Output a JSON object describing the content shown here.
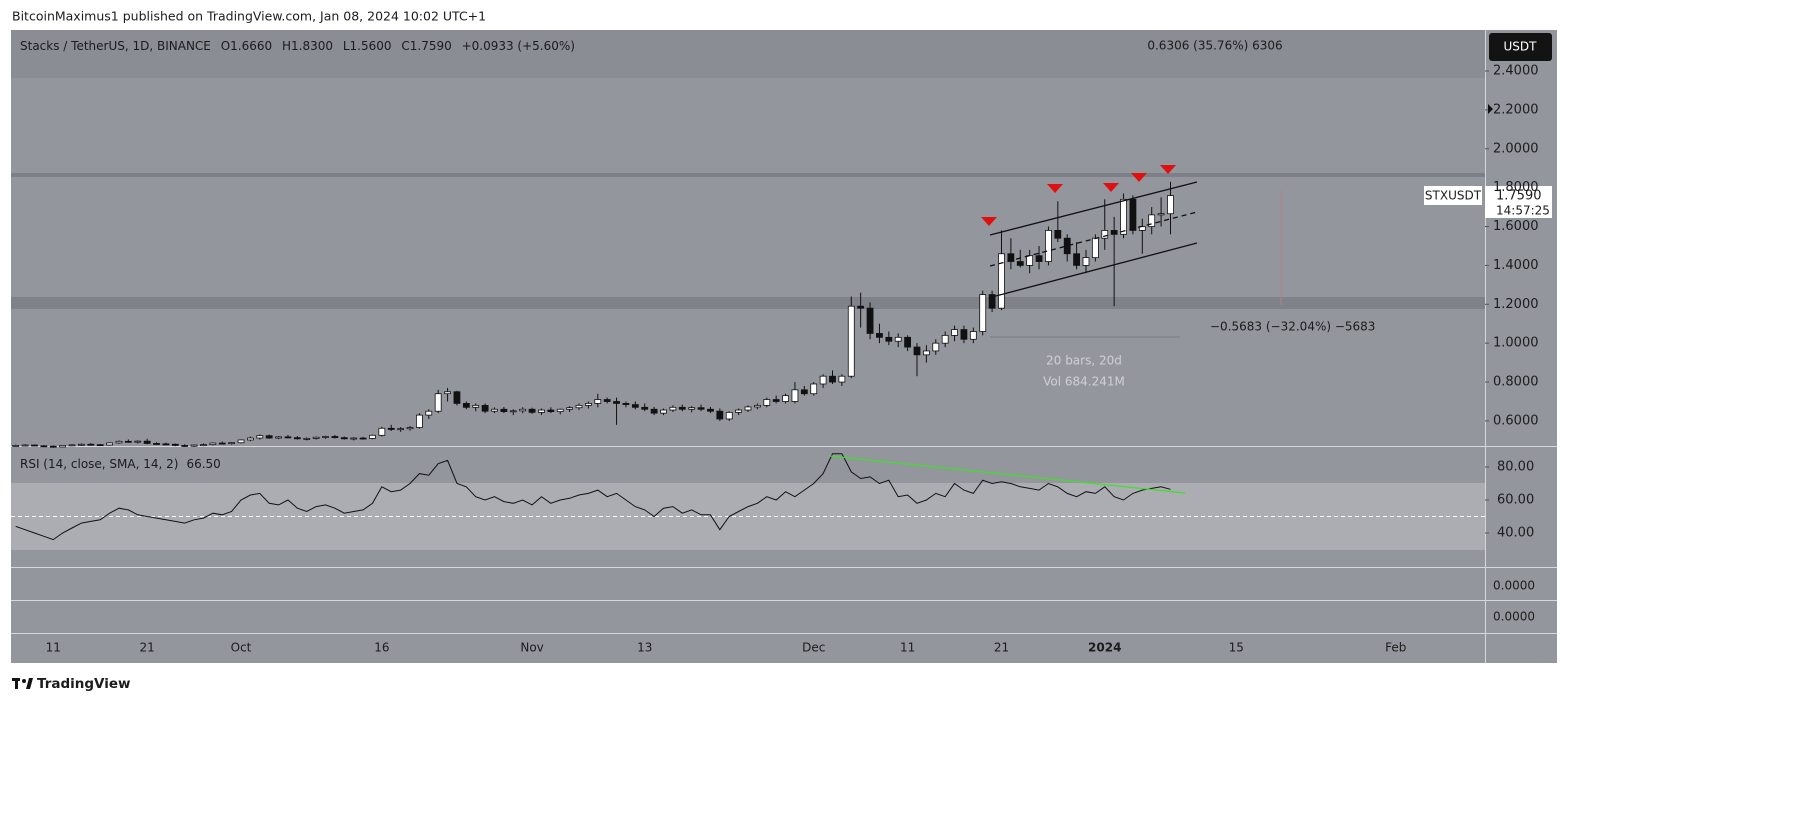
{
  "page": {
    "published": "BitcoinMaximus1 published on TradingView.com, Jan 08, 2024 10:02 UTC+1",
    "footer": "TradingView"
  },
  "chart_data": {
    "type": "candlestick",
    "header": {
      "symbol": "Stacks / TetherUS, 1D, BINANCE",
      "o": "O",
      "open": "1.6660",
      "h": "H",
      "high": "1.8300",
      "l": "L",
      "low": "1.5600",
      "c": "C",
      "close": "1.7590",
      "change": "+0.0933 (+5.60%)"
    },
    "currency": "USDT",
    "symbol_tag": "STXUSDT",
    "last_price": "1.7590",
    "countdown": "14:57:25",
    "annotations": {
      "range_up": "0.6306 (35.76%) 6306",
      "range_down": "−0.5683 (−32.04%) −5683",
      "bars": "20 bars, 20d",
      "volume": "Vol 684.241M"
    },
    "ylim": [
      0.471,
      2.611
    ],
    "yticks": [
      {
        "value": 0.6,
        "label": "0.6000"
      },
      {
        "value": 0.8,
        "label": "0.8000"
      },
      {
        "value": 1.0,
        "label": "1.0000"
      },
      {
        "value": 1.2,
        "label": "1.2000"
      },
      {
        "value": 1.4,
        "label": "1.4000"
      },
      {
        "value": 1.6,
        "label": "1.6000"
      },
      {
        "value": 1.8,
        "label": "1.8000"
      },
      {
        "value": 2.0,
        "label": "2.0000"
      },
      {
        "value": 2.2,
        "label": "2.2000"
      },
      {
        "value": 2.4,
        "label": "2.4000"
      }
    ],
    "up_color": "#ffffff",
    "down_color": "#111111",
    "categories": [
      null,
      null,
      null,
      null,
      "11",
      null,
      null,
      null,
      null,
      null,
      null,
      null,
      null,
      null,
      "21",
      null,
      null,
      null,
      null,
      null,
      null,
      null,
      null,
      null,
      "Oct",
      null,
      null,
      null,
      null,
      null,
      null,
      null,
      null,
      null,
      null,
      null,
      null,
      null,
      null,
      "16",
      null,
      null,
      null,
      null,
      null,
      null,
      null,
      null,
      null,
      null,
      null,
      null,
      null,
      null,
      null,
      "Nov",
      null,
      null,
      null,
      null,
      null,
      null,
      null,
      null,
      null,
      null,
      null,
      "13",
      null,
      null,
      null,
      null,
      null,
      null,
      null,
      null,
      null,
      null,
      null,
      null,
      null,
      null,
      null,
      null,
      null,
      "Dec",
      null,
      null,
      null,
      null,
      null,
      null,
      null,
      null,
      null,
      "11",
      null,
      null,
      null,
      null,
      null,
      null,
      null,
      null,
      null,
      "21",
      null,
      null,
      null,
      null,
      null,
      null,
      null,
      null,
      null,
      null,
      "2024",
      null,
      null,
      null,
      null,
      null,
      null,
      null,
      null,
      null,
      null,
      null,
      null,
      null,
      "15",
      null,
      null,
      null,
      null,
      null,
      null,
      null,
      null,
      null,
      null,
      null,
      null,
      null,
      null,
      null,
      null,
      "Feb",
      null,
      null,
      null,
      null,
      null,
      null,
      null,
      null,
      null
    ],
    "ohlc": [
      [
        0.472,
        0.478,
        0.468,
        0.474
      ],
      [
        0.474,
        0.48,
        0.47,
        0.476
      ],
      [
        0.476,
        0.479,
        0.47,
        0.472
      ],
      [
        0.472,
        0.476,
        0.466,
        0.47
      ],
      [
        0.47,
        0.474,
        0.462,
        0.466
      ],
      [
        0.466,
        0.476,
        0.464,
        0.474
      ],
      [
        0.474,
        0.48,
        0.47,
        0.477
      ],
      [
        0.477,
        0.484,
        0.472,
        0.48
      ],
      [
        0.48,
        0.486,
        0.474,
        0.478
      ],
      [
        0.478,
        0.482,
        0.472,
        0.476
      ],
      [
        0.476,
        0.49,
        0.474,
        0.487
      ],
      [
        0.487,
        0.5,
        0.482,
        0.495
      ],
      [
        0.495,
        0.505,
        0.488,
        0.492
      ],
      [
        0.492,
        0.5,
        0.484,
        0.496
      ],
      [
        0.496,
        0.508,
        0.48,
        0.484
      ],
      [
        0.484,
        0.49,
        0.476,
        0.482
      ],
      [
        0.482,
        0.488,
        0.476,
        0.48
      ],
      [
        0.48,
        0.484,
        0.47,
        0.474
      ],
      [
        0.474,
        0.48,
        0.466,
        0.47
      ],
      [
        0.47,
        0.478,
        0.466,
        0.476
      ],
      [
        0.476,
        0.484,
        0.47,
        0.478
      ],
      [
        0.478,
        0.49,
        0.474,
        0.486
      ],
      [
        0.486,
        0.494,
        0.48,
        0.484
      ],
      [
        0.484,
        0.49,
        0.478,
        0.488
      ],
      [
        0.488,
        0.505,
        0.484,
        0.502
      ],
      [
        0.502,
        0.52,
        0.496,
        0.512
      ],
      [
        0.512,
        0.53,
        0.504,
        0.524
      ],
      [
        0.524,
        0.53,
        0.508,
        0.512
      ],
      [
        0.512,
        0.522,
        0.506,
        0.518
      ],
      [
        0.518,
        0.528,
        0.51,
        0.514
      ],
      [
        0.514,
        0.522,
        0.504,
        0.508
      ],
      [
        0.508,
        0.516,
        0.5,
        0.51
      ],
      [
        0.51,
        0.52,
        0.504,
        0.516
      ],
      [
        0.516,
        0.524,
        0.508,
        0.52
      ],
      [
        0.52,
        0.528,
        0.51,
        0.514
      ],
      [
        0.514,
        0.52,
        0.504,
        0.508
      ],
      [
        0.508,
        0.516,
        0.5,
        0.512
      ],
      [
        0.512,
        0.518,
        0.504,
        0.51
      ],
      [
        0.51,
        0.53,
        0.506,
        0.526
      ],
      [
        0.526,
        0.57,
        0.52,
        0.562
      ],
      [
        0.562,
        0.58,
        0.548,
        0.556
      ],
      [
        0.556,
        0.568,
        0.544,
        0.56
      ],
      [
        0.56,
        0.574,
        0.55,
        0.566
      ],
      [
        0.566,
        0.64,
        0.56,
        0.63
      ],
      [
        0.63,
        0.66,
        0.61,
        0.65
      ],
      [
        0.65,
        0.76,
        0.64,
        0.74
      ],
      [
        0.74,
        0.77,
        0.7,
        0.75
      ],
      [
        0.75,
        0.755,
        0.68,
        0.69
      ],
      [
        0.69,
        0.7,
        0.66,
        0.67
      ],
      [
        0.67,
        0.69,
        0.65,
        0.68
      ],
      [
        0.68,
        0.69,
        0.64,
        0.65
      ],
      [
        0.65,
        0.67,
        0.64,
        0.66
      ],
      [
        0.66,
        0.672,
        0.64,
        0.648
      ],
      [
        0.648,
        0.66,
        0.63,
        0.652
      ],
      [
        0.652,
        0.67,
        0.64,
        0.66
      ],
      [
        0.66,
        0.668,
        0.636,
        0.644
      ],
      [
        0.644,
        0.664,
        0.63,
        0.656
      ],
      [
        0.656,
        0.67,
        0.64,
        0.648
      ],
      [
        0.648,
        0.664,
        0.634,
        0.66
      ],
      [
        0.66,
        0.676,
        0.646,
        0.668
      ],
      [
        0.668,
        0.69,
        0.656,
        0.68
      ],
      [
        0.68,
        0.7,
        0.664,
        0.69
      ],
      [
        0.69,
        0.74,
        0.67,
        0.71
      ],
      [
        0.71,
        0.72,
        0.69,
        0.7
      ],
      [
        0.7,
        0.72,
        0.58,
        0.69
      ],
      [
        0.69,
        0.7,
        0.67,
        0.684
      ],
      [
        0.684,
        0.7,
        0.66,
        0.67
      ],
      [
        0.67,
        0.69,
        0.65,
        0.66
      ],
      [
        0.66,
        0.672,
        0.63,
        0.64
      ],
      [
        0.64,
        0.664,
        0.63,
        0.656
      ],
      [
        0.656,
        0.68,
        0.646,
        0.67
      ],
      [
        0.67,
        0.684,
        0.65,
        0.66
      ],
      [
        0.66,
        0.676,
        0.644,
        0.668
      ],
      [
        0.668,
        0.684,
        0.65,
        0.66
      ],
      [
        0.66,
        0.672,
        0.64,
        0.65
      ],
      [
        0.65,
        0.664,
        0.6,
        0.61
      ],
      [
        0.61,
        0.65,
        0.6,
        0.644
      ],
      [
        0.644,
        0.664,
        0.63,
        0.656
      ],
      [
        0.656,
        0.68,
        0.646,
        0.672
      ],
      [
        0.672,
        0.69,
        0.66,
        0.68
      ],
      [
        0.68,
        0.72,
        0.67,
        0.71
      ],
      [
        0.71,
        0.73,
        0.69,
        0.7
      ],
      [
        0.7,
        0.74,
        0.69,
        0.73
      ],
      [
        0.7,
        0.8,
        0.69,
        0.76
      ],
      [
        0.76,
        0.78,
        0.73,
        0.74
      ],
      [
        0.74,
        0.8,
        0.73,
        0.79
      ],
      [
        0.79,
        0.84,
        0.77,
        0.83
      ],
      [
        0.83,
        0.86,
        0.79,
        0.8
      ],
      [
        0.8,
        0.84,
        0.78,
        0.83
      ],
      [
        0.83,
        1.24,
        0.82,
        1.19
      ],
      [
        1.19,
        1.26,
        1.08,
        1.18
      ],
      [
        1.18,
        1.21,
        1.02,
        1.05
      ],
      [
        1.05,
        1.1,
        1.0,
        1.03
      ],
      [
        1.03,
        1.06,
        0.99,
        1.01
      ],
      [
        1.01,
        1.05,
        0.98,
        1.03
      ],
      [
        1.03,
        1.04,
        0.96,
        0.98
      ],
      [
        0.98,
        1.0,
        0.83,
        0.94
      ],
      [
        0.94,
        0.99,
        0.9,
        0.96
      ],
      [
        0.96,
        1.02,
        0.94,
        1.0
      ],
      [
        1.0,
        1.06,
        0.98,
        1.04
      ],
      [
        1.04,
        1.09,
        1.01,
        1.07
      ],
      [
        1.07,
        1.09,
        1.0,
        1.02
      ],
      [
        1.02,
        1.08,
        1.0,
        1.06
      ],
      [
        1.06,
        1.27,
        1.04,
        1.25
      ],
      [
        1.25,
        1.27,
        1.16,
        1.18
      ],
      [
        1.18,
        1.58,
        1.17,
        1.46
      ],
      [
        1.46,
        1.54,
        1.38,
        1.42
      ],
      [
        1.42,
        1.48,
        1.39,
        1.4
      ],
      [
        1.4,
        1.48,
        1.36,
        1.45
      ],
      [
        1.45,
        1.5,
        1.38,
        1.42
      ],
      [
        1.42,
        1.6,
        1.4,
        1.58
      ],
      [
        1.58,
        1.73,
        1.52,
        1.54
      ],
      [
        1.54,
        1.56,
        1.42,
        1.46
      ],
      [
        1.46,
        1.52,
        1.38,
        1.4
      ],
      [
        1.4,
        1.48,
        1.36,
        1.44
      ],
      [
        1.44,
        1.56,
        1.42,
        1.54
      ],
      [
        1.54,
        1.74,
        1.48,
        1.58
      ],
      [
        1.58,
        1.65,
        1.19,
        1.56
      ],
      [
        1.56,
        1.77,
        1.54,
        1.74
      ],
      [
        1.74,
        1.76,
        1.56,
        1.58
      ],
      [
        1.58,
        1.64,
        1.46,
        1.6
      ],
      [
        1.6,
        1.7,
        1.56,
        1.66
      ],
      [
        1.66,
        1.75,
        1.6,
        1.666
      ],
      [
        1.666,
        1.83,
        1.56,
        1.759
      ],
      null,
      null,
      null,
      null,
      null,
      null,
      null,
      null,
      null,
      null,
      null,
      null,
      null,
      null,
      null,
      null,
      null,
      null,
      null,
      null,
      null,
      null,
      null,
      null,
      null,
      null,
      null,
      null,
      null,
      null,
      null,
      null,
      null
    ],
    "rsi": {
      "name": "RSI (14, close, SMA, 14, 2)",
      "current_label": "66.50",
      "color": "#111111",
      "ylim": [
        19.4,
        92.1
      ],
      "yticks": [
        {
          "value": 80,
          "label": "80.00"
        },
        {
          "value": 60,
          "label": "60.00"
        },
        {
          "value": 40,
          "label": "40.00"
        }
      ],
      "upper_band": 70,
      "lower_band": 30,
      "middle_band": 50,
      "values": [
        44,
        42,
        40,
        38,
        36,
        40,
        43,
        46,
        47,
        48,
        52,
        55,
        54,
        51,
        50,
        49,
        48,
        47,
        46,
        48,
        49,
        52,
        51,
        53,
        60,
        63,
        64,
        58,
        57,
        60,
        55,
        53,
        56,
        57,
        55,
        52,
        53,
        54,
        58,
        68,
        65,
        66,
        70,
        76,
        75,
        82,
        84,
        70,
        68,
        62,
        60,
        62,
        59,
        58,
        60,
        57,
        62,
        58,
        60,
        61,
        63,
        64,
        66,
        62,
        64,
        60,
        56,
        54,
        50,
        55,
        56,
        52,
        54,
        51,
        51,
        42,
        50,
        53,
        56,
        58,
        62,
        60,
        65,
        62,
        66,
        70,
        76,
        88,
        88,
        77,
        73,
        74,
        70,
        72,
        62,
        63,
        58,
        60,
        64,
        62,
        70,
        66,
        64,
        72,
        70,
        71,
        70,
        68,
        67,
        66,
        70,
        68,
        64,
        62,
        65,
        64,
        68,
        62,
        60,
        64,
        66,
        67,
        68,
        66.5,
        null,
        null,
        null,
        null,
        null,
        null,
        null,
        null,
        null,
        null,
        null,
        null,
        null,
        null,
        null,
        null,
        null,
        null,
        null,
        null,
        null,
        null,
        null,
        null,
        null,
        null,
        null,
        null,
        null,
        null,
        null,
        null,
        null
      ]
    },
    "lower_panes": [
      "0.0000",
      "0.0000"
    ]
  }
}
